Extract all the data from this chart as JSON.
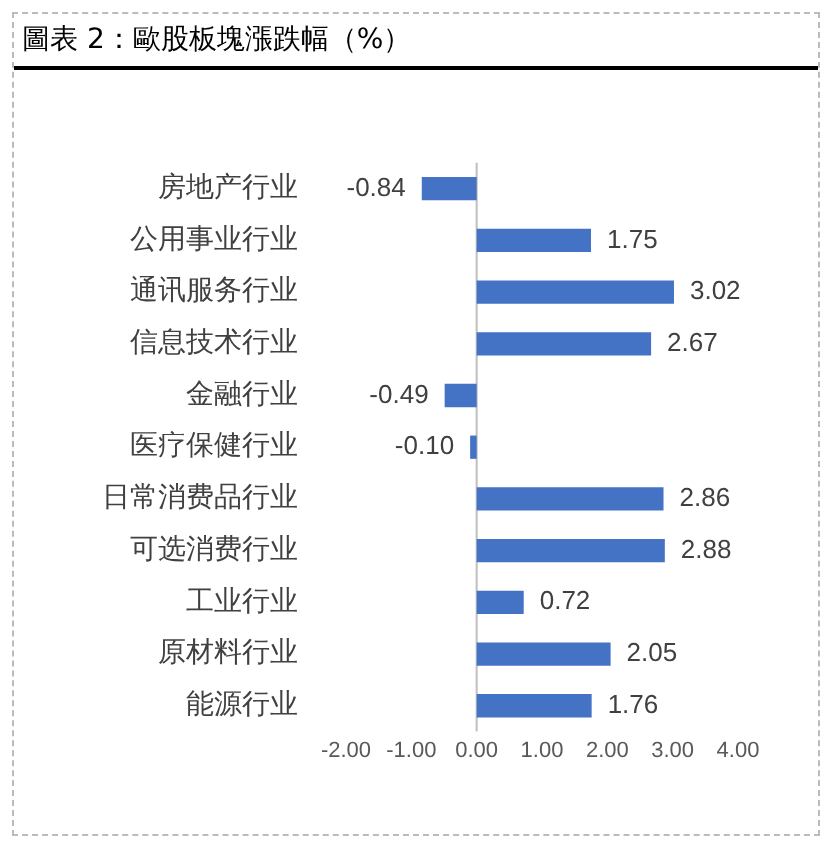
{
  "chart_data": {
    "type": "bar",
    "orientation": "horizontal",
    "title": "圖表 2：歐股板塊漲跌幅（%）",
    "categories": [
      "房地产行业",
      "公用事业行业",
      "通讯服务行业",
      "信息技术行业",
      "金融行业",
      "医疗保健行业",
      "日常消费品行业",
      "可选消费行业",
      "工业行业",
      "原材料行业",
      "能源行业"
    ],
    "values": [
      -0.84,
      1.75,
      3.02,
      2.67,
      -0.49,
      -0.1,
      2.86,
      2.88,
      0.72,
      2.05,
      1.76
    ],
    "value_labels": [
      "-0.84",
      "1.75",
      "3.02",
      "2.67",
      "-0.49",
      "-0.10",
      "2.86",
      "2.88",
      "0.72",
      "2.05",
      "1.76"
    ],
    "color": "#4472c4",
    "xlim": [
      -2,
      4
    ],
    "xticks": [
      {
        "value": -2,
        "label": "-2.00"
      },
      {
        "value": -1,
        "label": "-1.00"
      },
      {
        "value": 0,
        "label": "0.00"
      },
      {
        "value": 1,
        "label": "1.00"
      },
      {
        "value": 2,
        "label": "2.00"
      },
      {
        "value": 3,
        "label": "3.00"
      },
      {
        "value": 4,
        "label": "4.00"
      }
    ],
    "ref_lines": [
      {
        "axis": "x",
        "value": 0,
        "color": "#bfbfbf"
      }
    ],
    "grid": false,
    "legend": false
  }
}
